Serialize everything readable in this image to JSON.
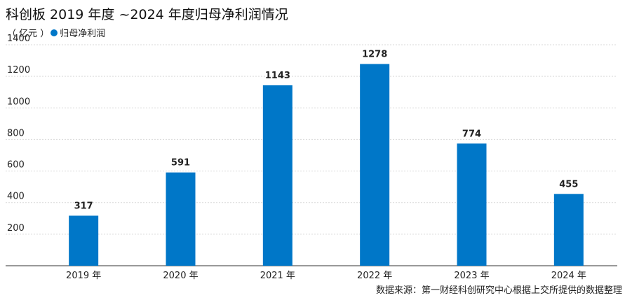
{
  "title": "科创板 2019 年度 ~2024 年度归母净利润情况",
  "unit": "（ 亿元 ）",
  "source": "数据来源：第一财经科创研究中心根据上交所提供的数据整理",
  "colors": {
    "bar": "#0077c8",
    "grid": "#d9d9d9",
    "axis": "#333333"
  },
  "chart_data": {
    "type": "bar",
    "title": "科创板 2019 年度 ~2024 年度归母净利润情况",
    "ylabel": "（ 亿元 ）",
    "xlabel": "",
    "ylim": [
      0,
      1400
    ],
    "yticks": [
      200,
      400,
      600,
      800,
      1000,
      1200,
      1400
    ],
    "grid": true,
    "legend_position": "top-left",
    "categories": [
      "2019 年",
      "2020 年",
      "2021 年",
      "2022 年",
      "2023 年",
      "2024 年"
    ],
    "series": [
      {
        "name": "归母净利润",
        "values": [
          317,
          591,
          1143,
          1278,
          774,
          455
        ]
      }
    ]
  }
}
